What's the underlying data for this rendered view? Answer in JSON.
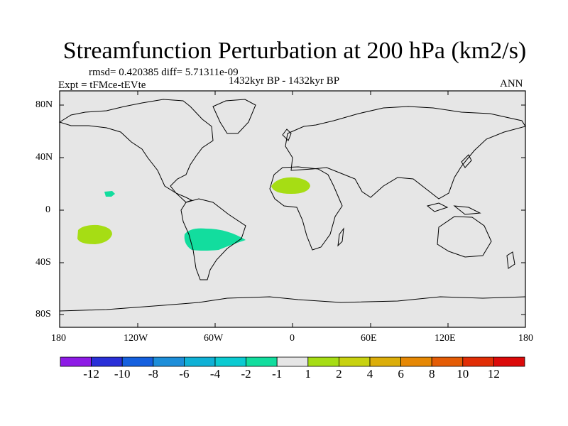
{
  "title": "Streamfunction Perturbation at 200 hPa (km2/s)",
  "stats": "rmsd= 0.420385  diff= 5.71311e-09",
  "experiment": "Expt = tFMce-tEVte",
  "period": "1432kyr BP - 1432kyr BP",
  "season": "ANN",
  "lat_labels": [
    "80N",
    "40N",
    "0",
    "40S",
    "80S"
  ],
  "lon_labels": [
    "180",
    "120W",
    "60W",
    "0",
    "60E",
    "120E",
    "180"
  ],
  "colorbar": {
    "labels": [
      "-12",
      "-10",
      "-8",
      "-6",
      "-4",
      "-2",
      "-1",
      "1",
      "2",
      "4",
      "6",
      "8",
      "10",
      "12"
    ],
    "colors": [
      "#8e1be6",
      "#2a30d8",
      "#1560df",
      "#1d8ed9",
      "#0fb1d6",
      "#0bcbd2",
      "#12dd9e",
      "#e6e6e6",
      "#a6dd14",
      "#c8d210",
      "#dcae0a",
      "#e68804",
      "#e45c06",
      "#e12e06",
      "#dc0a0a"
    ]
  },
  "map_background": "#e6e6e6",
  "anomalies": [
    {
      "region": "North Africa",
      "level": "1 to 2",
      "color": "#a6dd14"
    },
    {
      "region": "Central Pacific",
      "level": "-2 to -1",
      "color": "#12dd9e"
    },
    {
      "region": "South Pacific",
      "level": "1 to 2",
      "color": "#a6dd14"
    },
    {
      "region": "South America",
      "level": "-2 to -1",
      "color": "#12dd9e"
    }
  ]
}
